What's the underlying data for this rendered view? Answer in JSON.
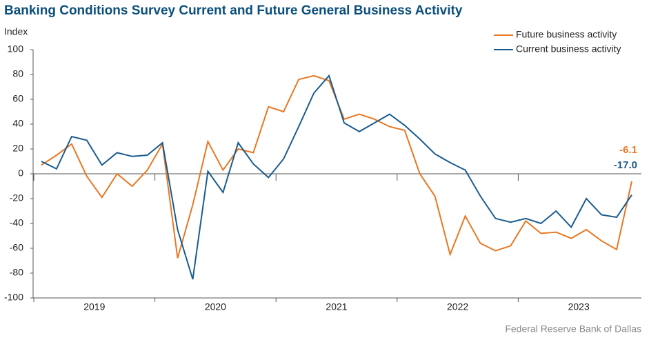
{
  "chart_data": {
    "type": "line",
    "title": "Banking Conditions Survey Current and Future General Business Activity",
    "y_label": "Index",
    "source": "Federal Reserve Bank of Dallas",
    "categories": [
      null,
      null,
      null,
      "2019",
      null,
      null,
      null,
      null,
      null,
      null,
      null,
      "2020",
      null,
      null,
      null,
      null,
      null,
      null,
      null,
      "2021",
      null,
      null,
      null,
      null,
      null,
      null,
      null,
      "2022",
      null,
      null,
      null,
      null,
      null,
      null,
      null,
      "2023",
      null,
      null,
      null,
      null
    ],
    "series": [
      {
        "name": "Future business activity",
        "color": "#e87722",
        "values": [
          7,
          15,
          24,
          -2,
          -19,
          0,
          -10,
          3,
          24,
          -68,
          -25,
          26,
          3,
          20,
          17,
          54,
          50,
          76,
          79,
          75,
          44,
          48,
          44,
          38,
          35,
          0,
          -18,
          -65,
          -34,
          -56,
          -62,
          -58,
          -38,
          -48,
          -47,
          -52,
          -45,
          -54,
          -61,
          -6.1
        ],
        "value_labels": [
          null,
          null,
          null,
          null,
          null,
          null,
          null,
          null,
          null,
          null,
          null,
          null,
          null,
          null,
          null,
          null,
          null,
          null,
          null,
          null,
          null,
          null,
          null,
          null,
          null,
          null,
          null,
          null,
          null,
          null,
          null,
          null,
          null,
          null,
          null,
          null,
          null,
          null,
          null,
          "-6.1"
        ]
      },
      {
        "name": "Current business activity",
        "color": "#1a5b8f",
        "values": [
          10,
          4,
          30,
          27,
          7,
          17,
          14,
          15,
          25,
          -45,
          -85,
          2,
          -15,
          25,
          8,
          -3,
          12,
          38,
          65,
          79,
          41,
          34,
          41,
          48,
          39,
          28,
          16,
          9,
          3,
          -18,
          -36,
          -39,
          -36,
          -40,
          -30,
          -43,
          -20,
          -33,
          -35,
          -17
        ],
        "value_labels": [
          null,
          null,
          null,
          null,
          null,
          null,
          null,
          null,
          null,
          null,
          null,
          null,
          null,
          null,
          null,
          null,
          null,
          null,
          null,
          null,
          null,
          null,
          null,
          null,
          null,
          null,
          null,
          null,
          null,
          null,
          null,
          null,
          null,
          null,
          null,
          null,
          null,
          null,
          null,
          "-17.0"
        ]
      }
    ],
    "ylim": [
      -100,
      100
    ],
    "yticks": [
      -100,
      -80,
      -60,
      -40,
      -20,
      0,
      20,
      40,
      60,
      80,
      100
    ],
    "legend": "top-right"
  }
}
